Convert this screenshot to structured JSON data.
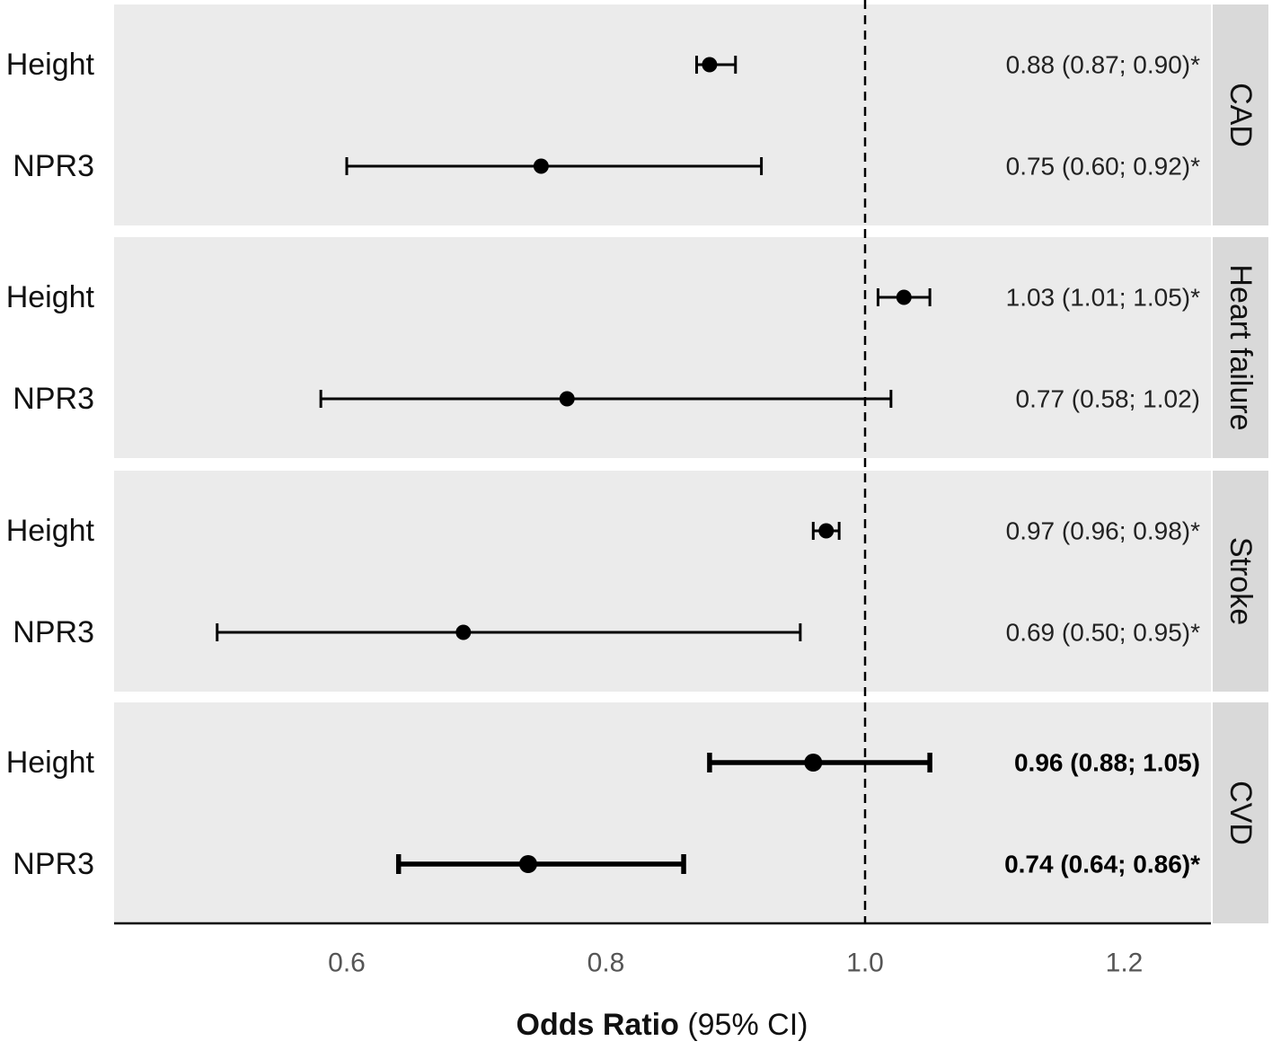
{
  "chart_data": {
    "type": "forest",
    "xlabel": {
      "bold": "Odds Ratio",
      "rest": " (95% CI)"
    },
    "reference_line": 1.0,
    "x_ticks": [
      "0.6",
      "0.8",
      "1.0",
      "1.2"
    ],
    "panels": [
      {
        "label": "CAD",
        "rows": [
          {
            "name": "Height",
            "or": 0.88,
            "lo": 0.87,
            "hi": 0.9,
            "text": "0.88 (0.87; 0.90)*",
            "bold": false
          },
          {
            "name": "NPR3",
            "or": 0.75,
            "lo": 0.6,
            "hi": 0.92,
            "text": "0.75 (0.60; 0.92)*",
            "bold": false
          }
        ]
      },
      {
        "label": "Heart failure",
        "rows": [
          {
            "name": "Height",
            "or": 1.03,
            "lo": 1.01,
            "hi": 1.05,
            "text": "1.03 (1.01; 1.05)*",
            "bold": false
          },
          {
            "name": "NPR3",
            "or": 0.77,
            "lo": 0.58,
            "hi": 1.02,
            "text": "0.77 (0.58; 1.02)",
            "bold": false
          }
        ]
      },
      {
        "label": "Stroke",
        "rows": [
          {
            "name": "Height",
            "or": 0.97,
            "lo": 0.96,
            "hi": 0.98,
            "text": "0.97 (0.96; 0.98)*",
            "bold": false
          },
          {
            "name": "NPR3",
            "or": 0.69,
            "lo": 0.5,
            "hi": 0.95,
            "text": "0.69 (0.50; 0.95)*",
            "bold": false
          }
        ]
      },
      {
        "label": "CVD",
        "rows": [
          {
            "name": "Height",
            "or": 0.96,
            "lo": 0.88,
            "hi": 1.05,
            "text": "0.96 (0.88; 1.05)",
            "bold": true
          },
          {
            "name": "NPR3",
            "or": 0.74,
            "lo": 0.64,
            "hi": 0.86,
            "text": "0.74 (0.64; 0.86)*",
            "bold": true
          }
        ]
      }
    ],
    "colors": {
      "panel_bg": "#ebebeb",
      "strip_bg": "#d9d9d9",
      "marks": "#000000"
    },
    "grid": false
  }
}
